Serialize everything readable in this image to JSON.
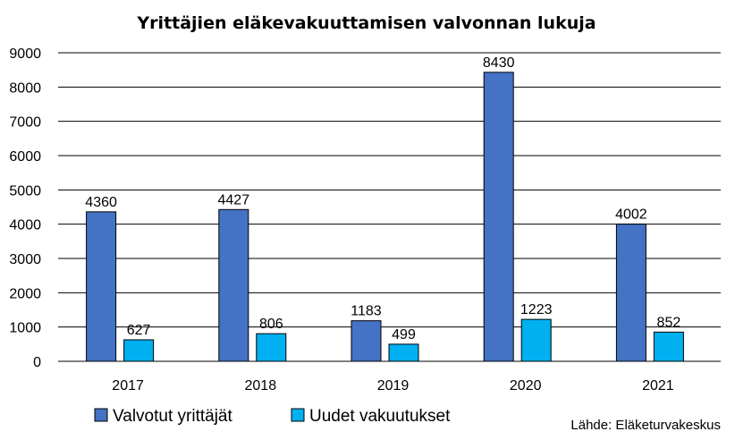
{
  "chart_data": {
    "type": "bar",
    "title": "Yrittäjien eläkevakuuttamisen valvonnan lukuja",
    "categories": [
      "2017",
      "2018",
      "2019",
      "2020",
      "2021"
    ],
    "series": [
      {
        "name": "Valvotut yrittäjät",
        "color": "#4472c4",
        "values": [
          4360,
          4427,
          1183,
          8430,
          4002
        ]
      },
      {
        "name": "Uudet vakuutukset",
        "color": "#00b0f0",
        "values": [
          627,
          806,
          499,
          1223,
          852
        ]
      }
    ],
    "ylim": [
      0,
      9000
    ],
    "ytick_step": 1000,
    "grid": true,
    "legend_position": "bottom-left",
    "xlabel": "",
    "ylabel": ""
  },
  "source": "Lähde: Eläketurvakeskus"
}
